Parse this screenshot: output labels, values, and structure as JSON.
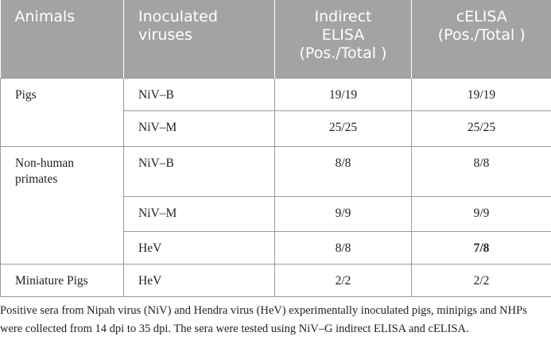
{
  "table": {
    "header": [
      [
        "Animals"
      ],
      [
        "Inoculated",
        "viruses"
      ],
      [
        "Indirect",
        "ELISA",
        "(Pos./Total )"
      ],
      [
        "cELISA",
        "(Pos./Total )"
      ]
    ],
    "groups": [
      {
        "animal": "Pigs",
        "rows": [
          [
            "NiV–B",
            "19/19",
            "19/19"
          ],
          [
            "NiV–M",
            "25/25",
            "25/25"
          ]
        ]
      },
      {
        "animal": "Non-human primates",
        "rows": [
          [
            "NiV–B",
            "8/8",
            "8/8"
          ],
          [
            "NiV–M",
            "9/9",
            "9/9"
          ],
          [
            "HeV",
            "8/8",
            "7/8"
          ]
        ]
      },
      {
        "animal": "Miniature Pigs",
        "rows": [
          [
            "HeV",
            "2/2",
            "2/2"
          ]
        ]
      }
    ]
  },
  "footnote": "Positive sera from Nipah virus (NiV) and Hendra virus (HeV) experimentally inoculated pigs, minipigs and NHPs were collected from 14 dpi to 35 dpi. The sera were tested using NiV–G indirect ELISA and cELISA."
}
